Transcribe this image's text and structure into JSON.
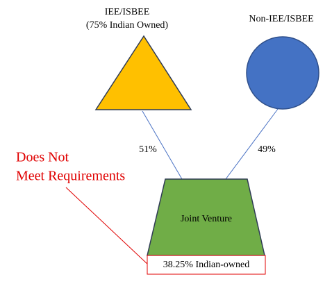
{
  "nodes": [
    {
      "label": "IEE/ISBEE",
      "sublabel": "(75% Indian Owned)"
    },
    {
      "label": "Non-IEE/ISBEE"
    },
    {
      "label": "Joint Venture"
    }
  ],
  "edges": [
    {
      "label": "51%"
    },
    {
      "label": "49%"
    }
  ],
  "annotation": {
    "lines": [
      "Does Not",
      "Meet Requirements"
    ]
  },
  "result": {
    "label": "38.25% Indian-owned"
  }
}
